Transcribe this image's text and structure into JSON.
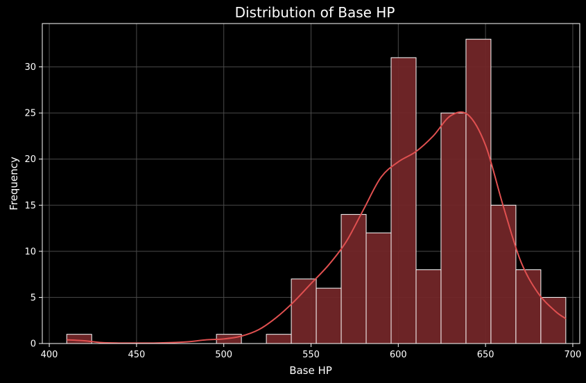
{
  "chart_data": {
    "type": "bar",
    "title": "Distribution of Base HP",
    "xlabel": "Base HP",
    "ylabel": "Frequency",
    "xlim": [
      396,
      704
    ],
    "ylim": [
      0,
      34.7
    ],
    "x_ticks": [
      400,
      450,
      500,
      550,
      600,
      650,
      700
    ],
    "y_ticks": [
      0,
      5,
      10,
      15,
      20,
      25,
      30
    ],
    "grid": true,
    "bins": [
      {
        "start": 410.0,
        "end": 424.3,
        "count": 1
      },
      {
        "start": 424.3,
        "end": 438.6,
        "count": 0
      },
      {
        "start": 438.6,
        "end": 452.9,
        "count": 0
      },
      {
        "start": 452.9,
        "end": 467.2,
        "count": 0
      },
      {
        "start": 467.2,
        "end": 481.5,
        "count": 0
      },
      {
        "start": 481.5,
        "end": 495.8,
        "count": 0
      },
      {
        "start": 495.8,
        "end": 510.1,
        "count": 1
      },
      {
        "start": 510.1,
        "end": 524.4,
        "count": 0
      },
      {
        "start": 524.4,
        "end": 538.7,
        "count": 1
      },
      {
        "start": 538.7,
        "end": 553.0,
        "count": 7
      },
      {
        "start": 553.0,
        "end": 567.3,
        "count": 6
      },
      {
        "start": 567.3,
        "end": 581.6,
        "count": 14
      },
      {
        "start": 581.6,
        "end": 595.9,
        "count": 12
      },
      {
        "start": 595.9,
        "end": 610.2,
        "count": 31
      },
      {
        "start": 610.2,
        "end": 624.5,
        "count": 8
      },
      {
        "start": 624.5,
        "end": 638.8,
        "count": 25
      },
      {
        "start": 638.8,
        "end": 653.1,
        "count": 33
      },
      {
        "start": 653.1,
        "end": 667.4,
        "count": 15
      },
      {
        "start": 667.4,
        "end": 681.7,
        "count": 8
      },
      {
        "start": 681.7,
        "end": 696.0,
        "count": 5
      }
    ],
    "kde": {
      "x": [
        410,
        420,
        430,
        440,
        450,
        460,
        470,
        480,
        490,
        500,
        510,
        520,
        530,
        540,
        550,
        560,
        570,
        580,
        590,
        600,
        610,
        620,
        630,
        640,
        650,
        660,
        670,
        680,
        690,
        696
      ],
      "y": [
        0.4,
        0.3,
        0.1,
        0.05,
        0.05,
        0.05,
        0.1,
        0.2,
        0.4,
        0.5,
        0.8,
        1.5,
        2.8,
        4.5,
        6.5,
        8.5,
        11.0,
        14.5,
        18.0,
        19.7,
        20.8,
        22.5,
        24.7,
        24.8,
        21.5,
        15.0,
        9.0,
        5.5,
        3.5,
        2.7
      ]
    },
    "colors": {
      "bar_fill": "#722628",
      "bar_edge": "#ffffff",
      "kde_line": "#e05050",
      "grid": "#4a4a4a",
      "axes_edge": "#ffffff",
      "background": "#000000"
    }
  }
}
